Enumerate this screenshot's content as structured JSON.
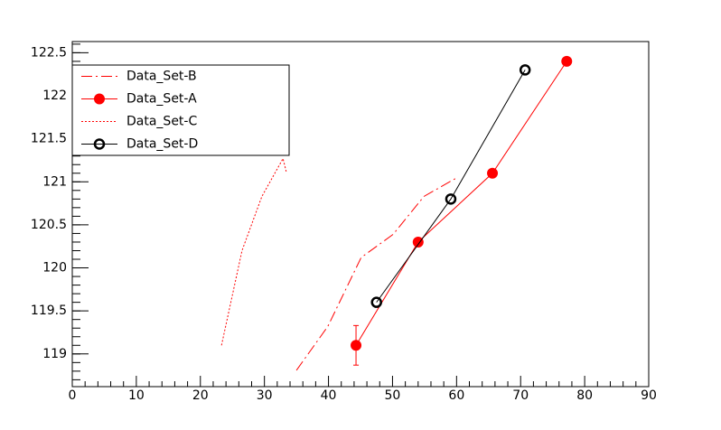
{
  "chart_data": {
    "type": "line",
    "xlim": [
      0,
      90
    ],
    "xticks": [
      0,
      10,
      20,
      30,
      40,
      50,
      60,
      70,
      80,
      90
    ],
    "ylim": [
      118.62,
      122.63
    ],
    "yticks": [
      119,
      119.5,
      120,
      120.5,
      121,
      121.5,
      122,
      122.5
    ],
    "legend": "top-left",
    "series": [
      {
        "name": "Data_Set-B",
        "color": "#ff0000",
        "line_style": "dashdot",
        "marker": "none",
        "x": [
          35.0,
          39.9,
          45.1,
          50.1,
          54.9,
          60.1
        ],
        "values": [
          118.81,
          119.32,
          120.12,
          120.39,
          120.83,
          121.05
        ]
      },
      {
        "name": "Data_Set-A",
        "color": "#ff0000",
        "line_style": "solid",
        "marker": "filled-circle",
        "x": [
          44.3,
          54.0,
          65.6,
          77.2
        ],
        "values": [
          119.1,
          120.3,
          121.1,
          122.4
        ],
        "errors": [
          0.23,
          null,
          null,
          null
        ]
      },
      {
        "name": "Data_Set-C",
        "color": "#ff0000",
        "line_style": "dotted",
        "marker": "none",
        "x": [
          23.3,
          26.5,
          29.6,
          32.9,
          33.4
        ],
        "values": [
          119.1,
          120.2,
          120.83,
          121.27,
          121.12
        ]
      },
      {
        "name": "Data_Set-D",
        "color": "#000000",
        "line_style": "solid",
        "marker": "open-circle",
        "x": [
          47.5,
          59.1,
          70.7
        ],
        "values": [
          119.6,
          120.8,
          122.3
        ]
      }
    ]
  }
}
